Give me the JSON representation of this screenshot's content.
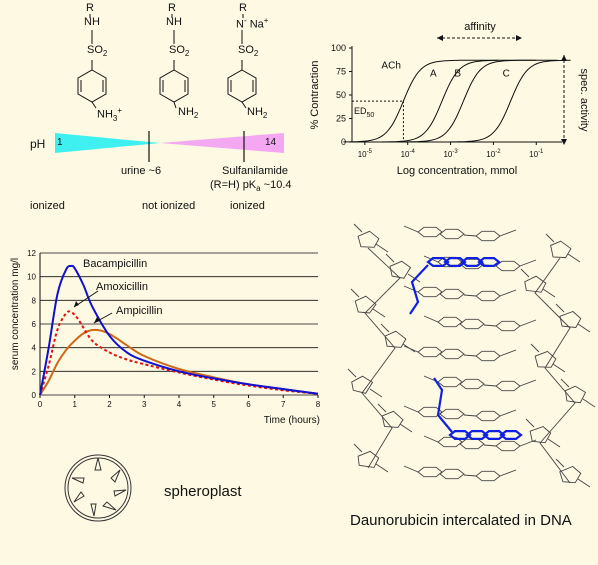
{
  "sulfa": {
    "structures": [
      {
        "r": "R",
        "nh": "NH",
        "so2": "SO",
        "sub": "2",
        "amine": "NH",
        "amine_sub": "3",
        "amine_sup": "+"
      },
      {
        "r": "R",
        "nh": "NH",
        "so2": "SO",
        "sub": "2",
        "amine": "NH",
        "amine_sub": "2",
        "amine_sup": ""
      },
      {
        "r": "R",
        "nh": "N",
        "nh_sup": "-",
        "na": "Na",
        "na_sup": "+",
        "so2": "SO",
        "sub": "2",
        "amine": "NH",
        "amine_sub": "2",
        "amine_sup": ""
      }
    ],
    "ph_label": "pH",
    "ph_min": "1",
    "ph_max": "14",
    "urine_label": "urine ~6",
    "sulfanilamide_label": "Sulfanilamide",
    "pka_prefix": "(R=H) pK",
    "pka_sub": "a",
    "pka_suffix": " ~10.4",
    "state_labels": [
      "ionized",
      "not ionized",
      "ionized"
    ],
    "colors": {
      "cyan": "#3ff0f0",
      "pink": "#f4a8f2"
    }
  },
  "dose_response": {
    "ylabel": "% Contraction",
    "xlabel": "Log concentration, mmol",
    "affinity_label": "affinity",
    "spec_activity_label": "spec. activity",
    "ed50_label": "ED",
    "ed50_sub": "50",
    "chart_data": {
      "type": "line",
      "title": "",
      "xlabel": "Log concentration, mmol",
      "ylabel": "% Contraction",
      "yticks": [
        0,
        25,
        50,
        75,
        100
      ],
      "xticks": [
        "10-5",
        "10-4",
        "10-3",
        "10-2",
        "10-1"
      ],
      "ylim": [
        0,
        100
      ],
      "xlim_log10": [
        -5.3,
        -0.4
      ],
      "series": [
        {
          "name": "ACh",
          "ec50_log10": -4.1,
          "max": 87
        },
        {
          "name": "A",
          "ec50_log10": -3.2,
          "max": 87
        },
        {
          "name": "B",
          "ec50_log10": -2.7,
          "max": 87
        },
        {
          "name": "C",
          "ec50_log10": -1.6,
          "max": 87
        }
      ]
    }
  },
  "serum": {
    "chart_data": {
      "type": "line",
      "title": "",
      "xlabel": "Time (hours)",
      "ylabel": "serum concentration mg/l",
      "xlim": [
        0,
        8
      ],
      "ylim": [
        0,
        12
      ],
      "xticks": [
        0,
        1,
        2,
        3,
        4,
        5,
        6,
        7,
        8
      ],
      "yticks": [
        0,
        2,
        4,
        6,
        8,
        10,
        12
      ],
      "grid": "horizontal",
      "series": [
        {
          "name": "Bacampicillin",
          "color": "#1010d0",
          "style": "solid",
          "x": [
            0,
            0.25,
            0.5,
            0.75,
            0.9,
            1.0,
            1.25,
            1.5,
            2.0,
            2.5,
            3.0,
            4.0,
            5.0,
            6.0,
            7.0,
            8.0
          ],
          "y": [
            0,
            4.0,
            8.5,
            10.6,
            10.9,
            10.7,
            9.3,
            7.5,
            5.0,
            3.6,
            2.9,
            2.0,
            1.4,
            0.9,
            0.5,
            0.1
          ]
        },
        {
          "name": "Amoxicillin",
          "color": "#e01010",
          "style": "dashed",
          "x": [
            0,
            0.25,
            0.5,
            0.75,
            0.9,
            1.1,
            1.5,
            2.0,
            2.5,
            3.0,
            4.0,
            5.0,
            6.0,
            7.0,
            8.0
          ],
          "y": [
            0,
            2.5,
            5.5,
            6.9,
            7.0,
            6.4,
            4.6,
            3.6,
            3.0,
            2.6,
            1.9,
            1.3,
            0.8,
            0.4,
            0.1
          ]
        },
        {
          "name": "Ampicillin",
          "color": "#cc6a1a",
          "style": "solid",
          "x": [
            0,
            0.25,
            0.5,
            0.75,
            1.0,
            1.3,
            1.6,
            1.9,
            2.2,
            2.5,
            3.0,
            4.0,
            5.0,
            6.0,
            7.0,
            8.0
          ],
          "y": [
            0,
            1.2,
            2.7,
            3.8,
            4.6,
            5.3,
            5.5,
            5.3,
            4.8,
            4.2,
            3.3,
            2.2,
            1.5,
            0.9,
            0.5,
            0.1
          ]
        }
      ]
    }
  },
  "spheroplast_label": "spheroplast",
  "dna_label": "Daunorubicin intercalated in DNA"
}
